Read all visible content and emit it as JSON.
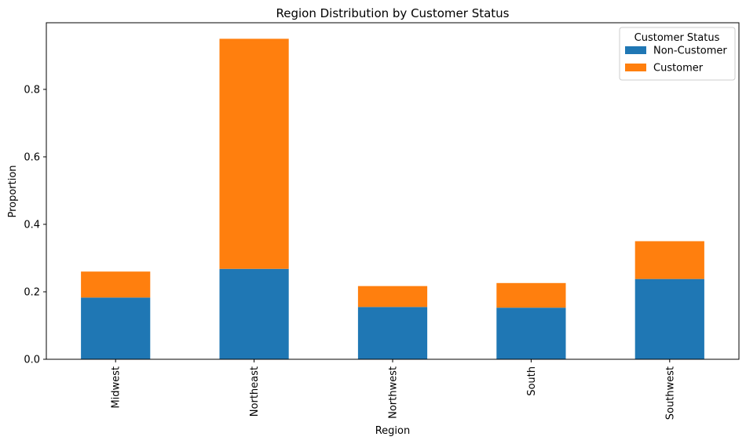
{
  "chart_data": {
    "type": "bar",
    "stacked": true,
    "title": "Region Distribution by Customer Status",
    "xlabel": "Region",
    "ylabel": "Proportion",
    "categories": [
      "Midwest",
      "Northeast",
      "Northwest",
      "South",
      "Southwest"
    ],
    "series": [
      {
        "name": "Non-Customer",
        "color": "#1f77b4",
        "values": [
          0.183,
          0.268,
          0.155,
          0.153,
          0.238
        ]
      },
      {
        "name": "Customer",
        "color": "#ff7f0e",
        "values": [
          0.077,
          0.682,
          0.062,
          0.073,
          0.112
        ]
      }
    ],
    "ylim": [
      0,
      0.9975
    ],
    "yticks": [
      0.0,
      0.2,
      0.4,
      0.6,
      0.8
    ],
    "ytick_labels": [
      "0.0",
      "0.2",
      "0.4",
      "0.6",
      "0.8"
    ],
    "legend": {
      "title": "Customer Status",
      "placement": "top-right"
    },
    "grid": false
  }
}
